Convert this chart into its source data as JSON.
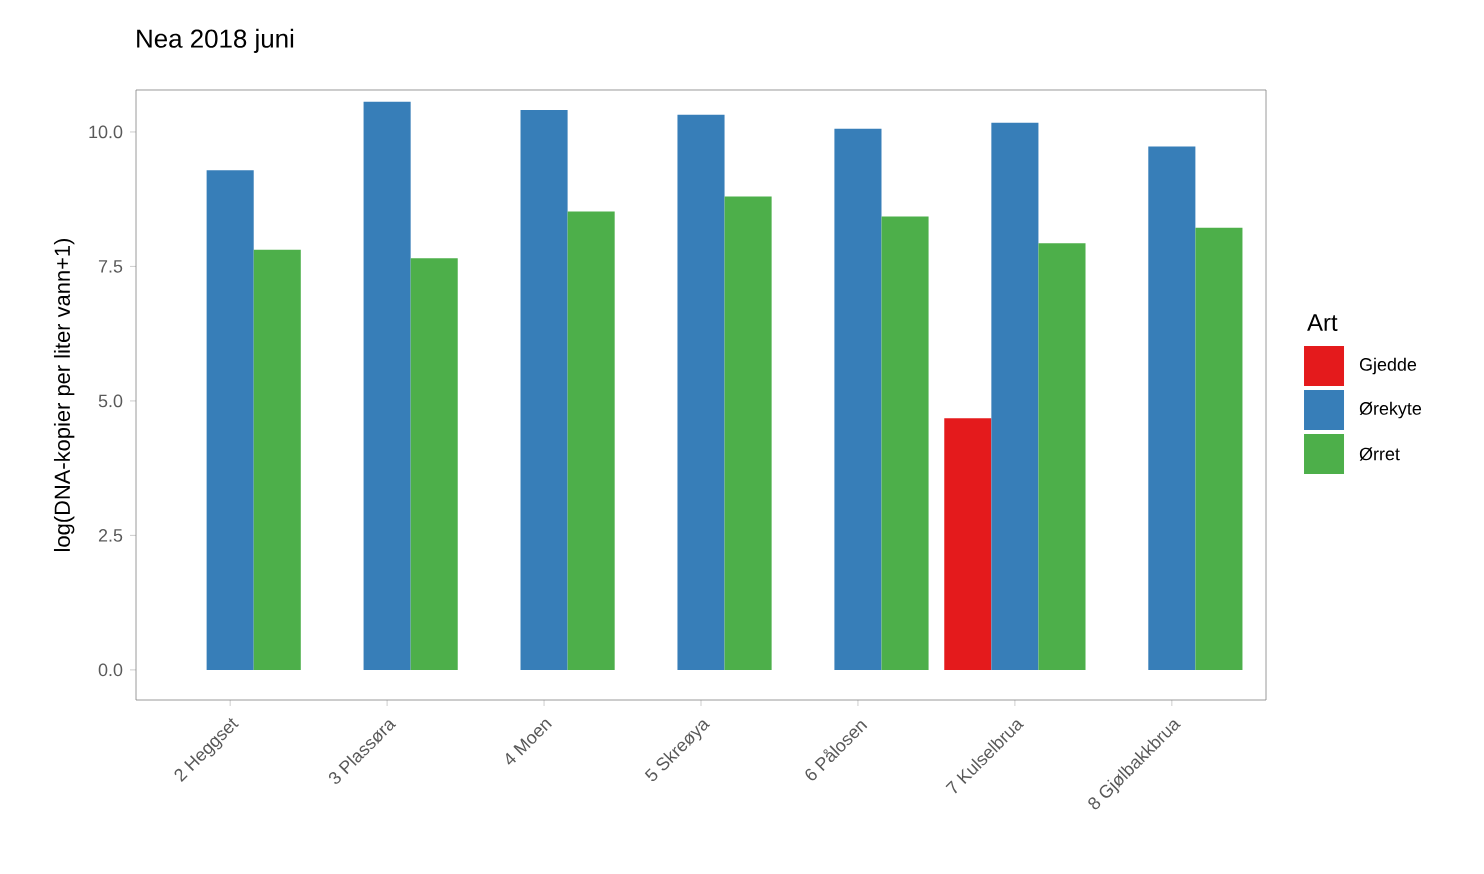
{
  "chart_data": {
    "type": "bar",
    "title": "Nea 2018 juni",
    "ylabel": "log(DNA-kopier per liter vann+1)",
    "legend_title": "Art",
    "legend": "right",
    "grid": false,
    "categories": [
      "2 Heggset",
      "3 Plassøra",
      "4 Moen",
      "5 Skreøya",
      "6 Pålosen",
      "7 Kulselbrua",
      "8 Gjølbakkbrua"
    ],
    "series": [
      {
        "name": "Gjedde",
        "color": "#e41a1c",
        "values": [
          null,
          null,
          null,
          null,
          null,
          4.68,
          null
        ]
      },
      {
        "name": "Ørekyte",
        "color": "#377eb8",
        "values": [
          9.29,
          10.56,
          10.41,
          10.32,
          10.06,
          10.17,
          9.73
        ]
      },
      {
        "name": "Ørret",
        "color": "#4daf4a",
        "values": [
          7.81,
          7.65,
          8.52,
          8.8,
          8.43,
          7.93,
          8.22
        ]
      }
    ],
    "ylim": [
      -0.56,
      10.78
    ],
    "yticks": [
      {
        "value": 0,
        "label": "0.0"
      },
      {
        "value": 2.5,
        "label": "2.5"
      },
      {
        "value": 5,
        "label": "5.0"
      },
      {
        "value": 7.5,
        "label": "7.5"
      },
      {
        "value": 10,
        "label": "10.0"
      }
    ]
  }
}
